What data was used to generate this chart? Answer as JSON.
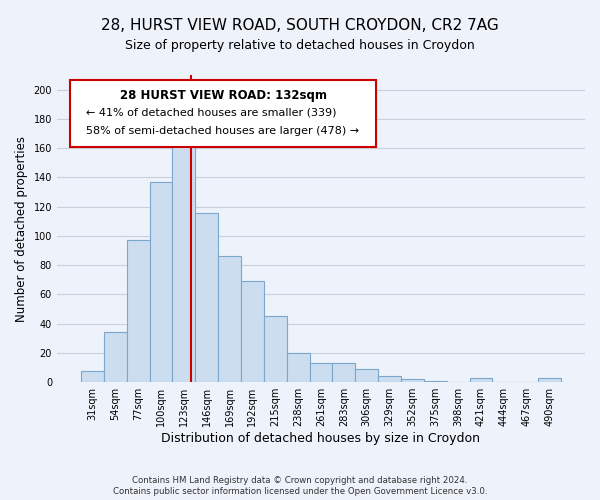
{
  "title": "28, HURST VIEW ROAD, SOUTH CROYDON, CR2 7AG",
  "subtitle": "Size of property relative to detached houses in Croydon",
  "xlabel": "Distribution of detached houses by size in Croydon",
  "ylabel": "Number of detached properties",
  "categories": [
    "31sqm",
    "54sqm",
    "77sqm",
    "100sqm",
    "123sqm",
    "146sqm",
    "169sqm",
    "192sqm",
    "215sqm",
    "238sqm",
    "261sqm",
    "283sqm",
    "306sqm",
    "329sqm",
    "352sqm",
    "375sqm",
    "398sqm",
    "421sqm",
    "444sqm",
    "467sqm",
    "490sqm"
  ],
  "values": [
    8,
    34,
    97,
    137,
    165,
    116,
    86,
    69,
    45,
    20,
    13,
    13,
    9,
    4,
    2,
    1,
    0,
    3,
    0,
    0,
    3
  ],
  "bar_color": "#ccddf0",
  "bar_edge_color": "#7ba7cc",
  "vline_x": 4.33,
  "vline_color": "#cc0000",
  "ylim": [
    0,
    210
  ],
  "yticks": [
    0,
    20,
    40,
    60,
    80,
    100,
    120,
    140,
    160,
    180,
    200
  ],
  "annotation_title": "28 HURST VIEW ROAD: 132sqm",
  "annotation_line1": "← 41% of detached houses are smaller (339)",
  "annotation_line2": "58% of semi-detached houses are larger (478) →",
  "footer1": "Contains HM Land Registry data © Crown copyright and database right 2024.",
  "footer2": "Contains public sector information licensed under the Open Government Licence v3.0.",
  "background_color": "#eef2fa",
  "grid_color": "#c8d0e0",
  "title_fontsize": 11,
  "subtitle_fontsize": 9,
  "tick_fontsize": 7,
  "ylabel_fontsize": 8.5,
  "xlabel_fontsize": 9
}
